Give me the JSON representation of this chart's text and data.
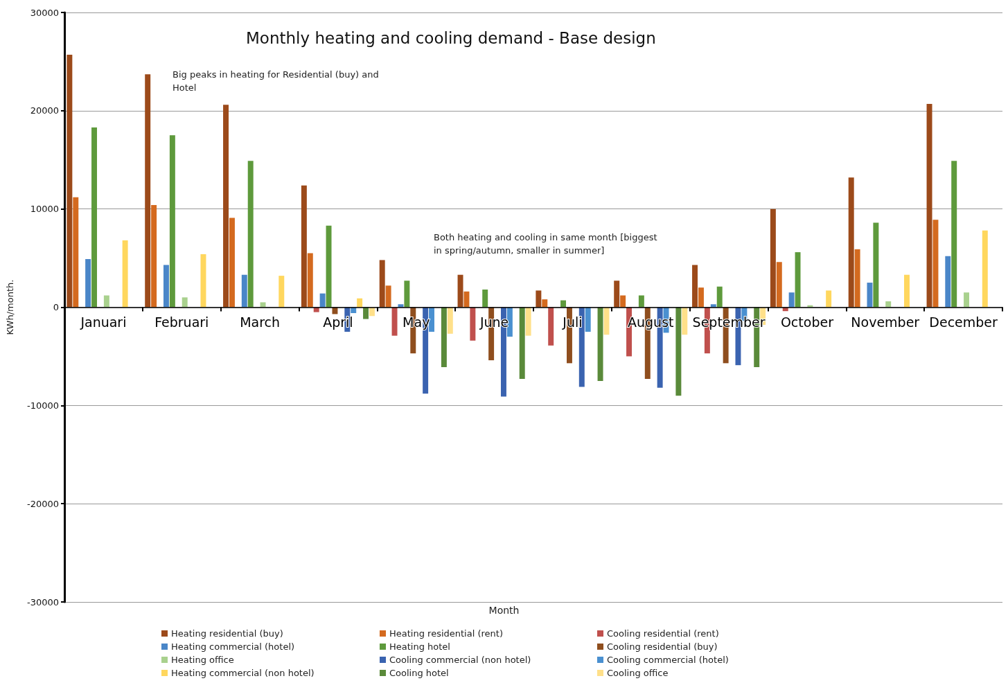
{
  "chart_data": {
    "type": "bar",
    "title": "Monthly heating and cooling demand - Base design",
    "xlabel": "Month",
    "ylabel": "KWh/month.",
    "categories": [
      "Januari",
      "Februari",
      "March",
      "April",
      "May",
      "June",
      "Juli",
      "August",
      "September",
      "October",
      "November",
      "December"
    ],
    "series": [
      {
        "name": "Heating residential (buy)",
        "color": "#9c4a1a",
        "values": [
          25700,
          23700,
          20600,
          12400,
          4800,
          3300,
          1700,
          2700,
          4300,
          10000,
          13200,
          20700
        ]
      },
      {
        "name": "Heating residential (rent)",
        "color": "#d46a1f",
        "values": [
          11200,
          10400,
          9100,
          5500,
          2200,
          1600,
          800,
          1200,
          2000,
          4600,
          5900,
          8900
        ]
      },
      {
        "name": "Cooling residential (rent)",
        "color": "#c0504d",
        "values": [
          0,
          0,
          0,
          -500,
          -2900,
          -3400,
          -3900,
          -5000,
          -4700,
          -400,
          0,
          0
        ]
      },
      {
        "name": "Heating commercial (hotel)",
        "color": "#4a86c8",
        "values": [
          4900,
          4300,
          3300,
          1400,
          300,
          null,
          0,
          0,
          300,
          1500,
          2500,
          5200
        ]
      },
      {
        "name": "Heating hotel",
        "color": "#5e9a3c",
        "values": [
          18300,
          17500,
          14900,
          8300,
          2700,
          1800,
          700,
          1200,
          2100,
          5600,
          8600,
          14900
        ]
      },
      {
        "name": "Cooling residential (buy)",
        "color": "#8f4e1e",
        "values": [
          0,
          0,
          0,
          -700,
          -4700,
          -5400,
          -5700,
          -7300,
          -5700,
          null,
          0,
          0
        ]
      },
      {
        "name": "Heating office",
        "color": "#a9d18e",
        "values": [
          1200,
          1000,
          500,
          0,
          0,
          0,
          0,
          0,
          0,
          200,
          600,
          1500
        ]
      },
      {
        "name": "Cooling commercial (non hotel)",
        "color": "#3a63b0",
        "values": [
          0,
          0,
          0,
          -2500,
          -8800,
          -9100,
          -8100,
          -8200,
          -5900,
          0,
          0,
          0
        ]
      },
      {
        "name": "Cooling commercial (hotel)",
        "color": "#4a90d0",
        "values": [
          0,
          0,
          0,
          -600,
          -2500,
          -3000,
          -2500,
          -2600,
          -1400,
          0,
          0,
          0
        ]
      },
      {
        "name": "Heating commercial (non hotel)",
        "color": "#ffd75e",
        "values": [
          6800,
          5400,
          3200,
          900,
          null,
          0,
          0,
          0,
          0,
          1700,
          3300,
          7800
        ]
      },
      {
        "name": "Cooling hotel",
        "color": "#5a8a3a",
        "values": [
          0,
          0,
          0,
          -1200,
          -6100,
          -7300,
          -7500,
          -9000,
          -6100,
          0,
          0,
          0
        ]
      },
      {
        "name": "Cooling office",
        "color": "#ffe08a",
        "values": [
          0,
          0,
          0,
          -900,
          -2700,
          -2900,
          -2800,
          -2800,
          -1800,
          0,
          0,
          0
        ]
      }
    ],
    "ylim": [
      -30000,
      30000
    ],
    "yticks": [
      -30000,
      -20000,
      -10000,
      0,
      10000,
      20000,
      30000
    ],
    "grid": "y",
    "legend": "bottom",
    "annotations": [
      "Big peaks in heating for Residential (buy) and Hotel",
      "Both heating and cooling in same month [biggest in spring/autumn, smaller in summer]"
    ]
  }
}
